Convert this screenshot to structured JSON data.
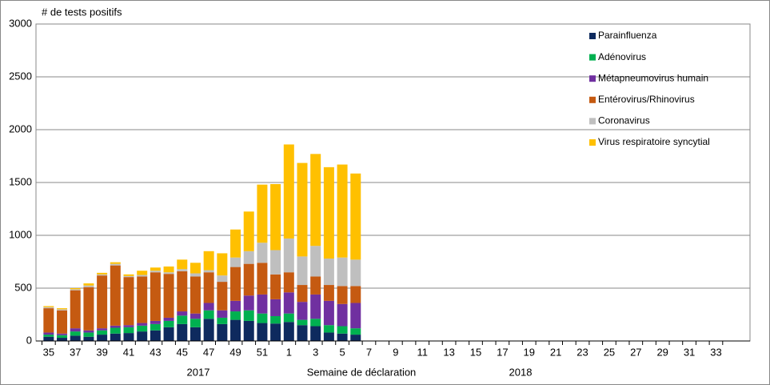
{
  "chart_data": {
    "type": "stacked_bar",
    "y_label": "# de tests positifs",
    "x_label": "Semaine de déclaration",
    "year_labels": [
      "2017",
      "2018"
    ],
    "categories": [
      "35",
      null,
      "37",
      null,
      "39",
      null,
      "41",
      null,
      "43",
      null,
      "45",
      null,
      "47",
      null,
      "49",
      null,
      "51",
      null,
      "1",
      null,
      "3",
      null,
      "5",
      null,
      "7",
      null,
      "9",
      null,
      "11",
      null,
      "13",
      null,
      "15",
      null,
      "17",
      null,
      "19",
      null,
      "21",
      null,
      "23",
      null,
      "25",
      null,
      "27",
      null,
      "29",
      null,
      "31",
      null,
      "33",
      null
    ],
    "series": [
      {
        "name": "Parainfluenza",
        "color": "#0e2a5e",
        "values": [
          40,
          30,
          50,
          40,
          60,
          70,
          75,
          90,
          100,
          130,
          160,
          130,
          210,
          160,
          200,
          190,
          170,
          165,
          180,
          150,
          140,
          80,
          70,
          60,
          null,
          null,
          null,
          null,
          null,
          null,
          null,
          null,
          null,
          null,
          null,
          null,
          null,
          null,
          null,
          null,
          null,
          null,
          null,
          null,
          null,
          null,
          null,
          null,
          null,
          null,
          null,
          null
        ]
      },
      {
        "name": "Adénovirus",
        "color": "#00b050",
        "values": [
          20,
          25,
          40,
          40,
          40,
          55,
          55,
          55,
          60,
          60,
          80,
          80,
          80,
          60,
          80,
          100,
          90,
          70,
          80,
          50,
          70,
          70,
          70,
          60,
          null,
          null,
          null,
          null,
          null,
          null,
          null,
          null,
          null,
          null,
          null,
          null,
          null,
          null,
          null,
          null,
          null,
          null,
          null,
          null,
          null,
          null,
          null,
          null,
          null,
          null,
          null,
          null
        ]
      },
      {
        "name": "Métapneumovirus humain",
        "color": "#7030a0",
        "values": [
          20,
          15,
          30,
          20,
          20,
          20,
          20,
          25,
          30,
          30,
          40,
          50,
          70,
          70,
          100,
          140,
          180,
          160,
          200,
          170,
          230,
          230,
          210,
          240,
          null,
          null,
          null,
          null,
          null,
          null,
          null,
          null,
          null,
          null,
          null,
          null,
          null,
          null,
          null,
          null,
          null,
          null,
          null,
          null,
          null,
          null,
          null,
          null,
          null,
          null,
          null,
          null
        ]
      },
      {
        "name": "Entérovirus/Rhinovirus",
        "color": "#c55a11",
        "values": [
          230,
          220,
          360,
          410,
          500,
          570,
          455,
          440,
          460,
          415,
          380,
          350,
          290,
          270,
          320,
          300,
          300,
          235,
          190,
          160,
          170,
          150,
          170,
          160,
          null,
          null,
          null,
          null,
          null,
          null,
          null,
          null,
          null,
          null,
          null,
          null,
          null,
          null,
          null,
          null,
          null,
          null,
          null,
          null,
          null,
          null,
          null,
          null,
          null,
          null,
          null,
          null
        ]
      },
      {
        "name": "Coronavirus",
        "color": "#bfbfbf",
        "values": [
          10,
          10,
          10,
          15,
          10,
          15,
          10,
          15,
          15,
          15,
          20,
          30,
          20,
          60,
          90,
          120,
          190,
          230,
          320,
          270,
          290,
          250,
          270,
          250,
          null,
          null,
          null,
          null,
          null,
          null,
          null,
          null,
          null,
          null,
          null,
          null,
          null,
          null,
          null,
          null,
          null,
          null,
          null,
          null,
          null,
          null,
          null,
          null,
          null,
          null,
          null,
          null
        ]
      },
      {
        "name": "Virus respiratoire syncytial",
        "color": "#ffc000",
        "values": [
          10,
          10,
          10,
          20,
          15,
          15,
          15,
          40,
          30,
          55,
          90,
          100,
          180,
          210,
          265,
          375,
          550,
          625,
          890,
          885,
          870,
          865,
          880,
          815,
          null,
          null,
          null,
          null,
          null,
          null,
          null,
          null,
          null,
          null,
          null,
          null,
          null,
          null,
          null,
          null,
          null,
          null,
          null,
          null,
          null,
          null,
          null,
          null,
          null,
          null,
          null,
          null
        ]
      }
    ],
    "ylim": [
      0,
      3000
    ],
    "yticks": [
      0,
      500,
      1000,
      1500,
      2000,
      2500,
      3000
    ],
    "grid": true,
    "legend": "top-right"
  }
}
